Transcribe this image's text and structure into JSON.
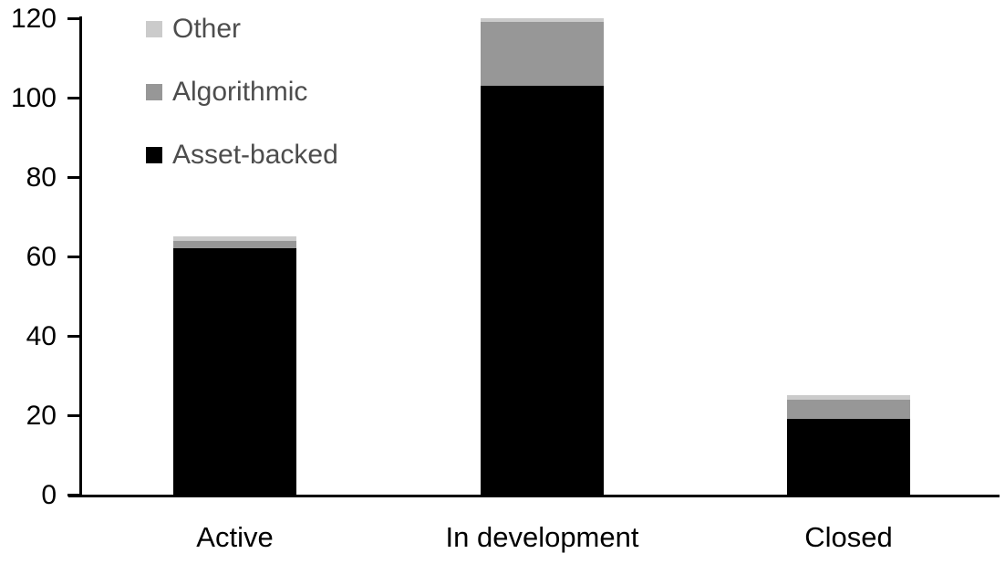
{
  "chart_data": {
    "type": "bar",
    "stacked": true,
    "title": "",
    "xlabel": "",
    "ylabel": "",
    "categories": [
      "Active",
      "In development",
      "Closed"
    ],
    "series": [
      {
        "name": "Asset-backed",
        "color": "#000000",
        "values": [
          62,
          103,
          19
        ]
      },
      {
        "name": "Algorithmic",
        "color": "#979797",
        "values": [
          2,
          16,
          5
        ]
      },
      {
        "name": "Other",
        "color": "#cbcbcb",
        "values": [
          1,
          1,
          1
        ]
      }
    ],
    "stack_totals": [
      65,
      120,
      25
    ],
    "ylim": [
      0,
      120
    ],
    "yticks": [
      0,
      20,
      40,
      60,
      80,
      100,
      120
    ],
    "grid": false,
    "legend": {
      "position": "top-left",
      "order": [
        "Other",
        "Algorithmic",
        "Asset-backed"
      ],
      "text_color": "#4d4d4d"
    },
    "axis_color": "#000000",
    "background_color": "#ffffff"
  }
}
